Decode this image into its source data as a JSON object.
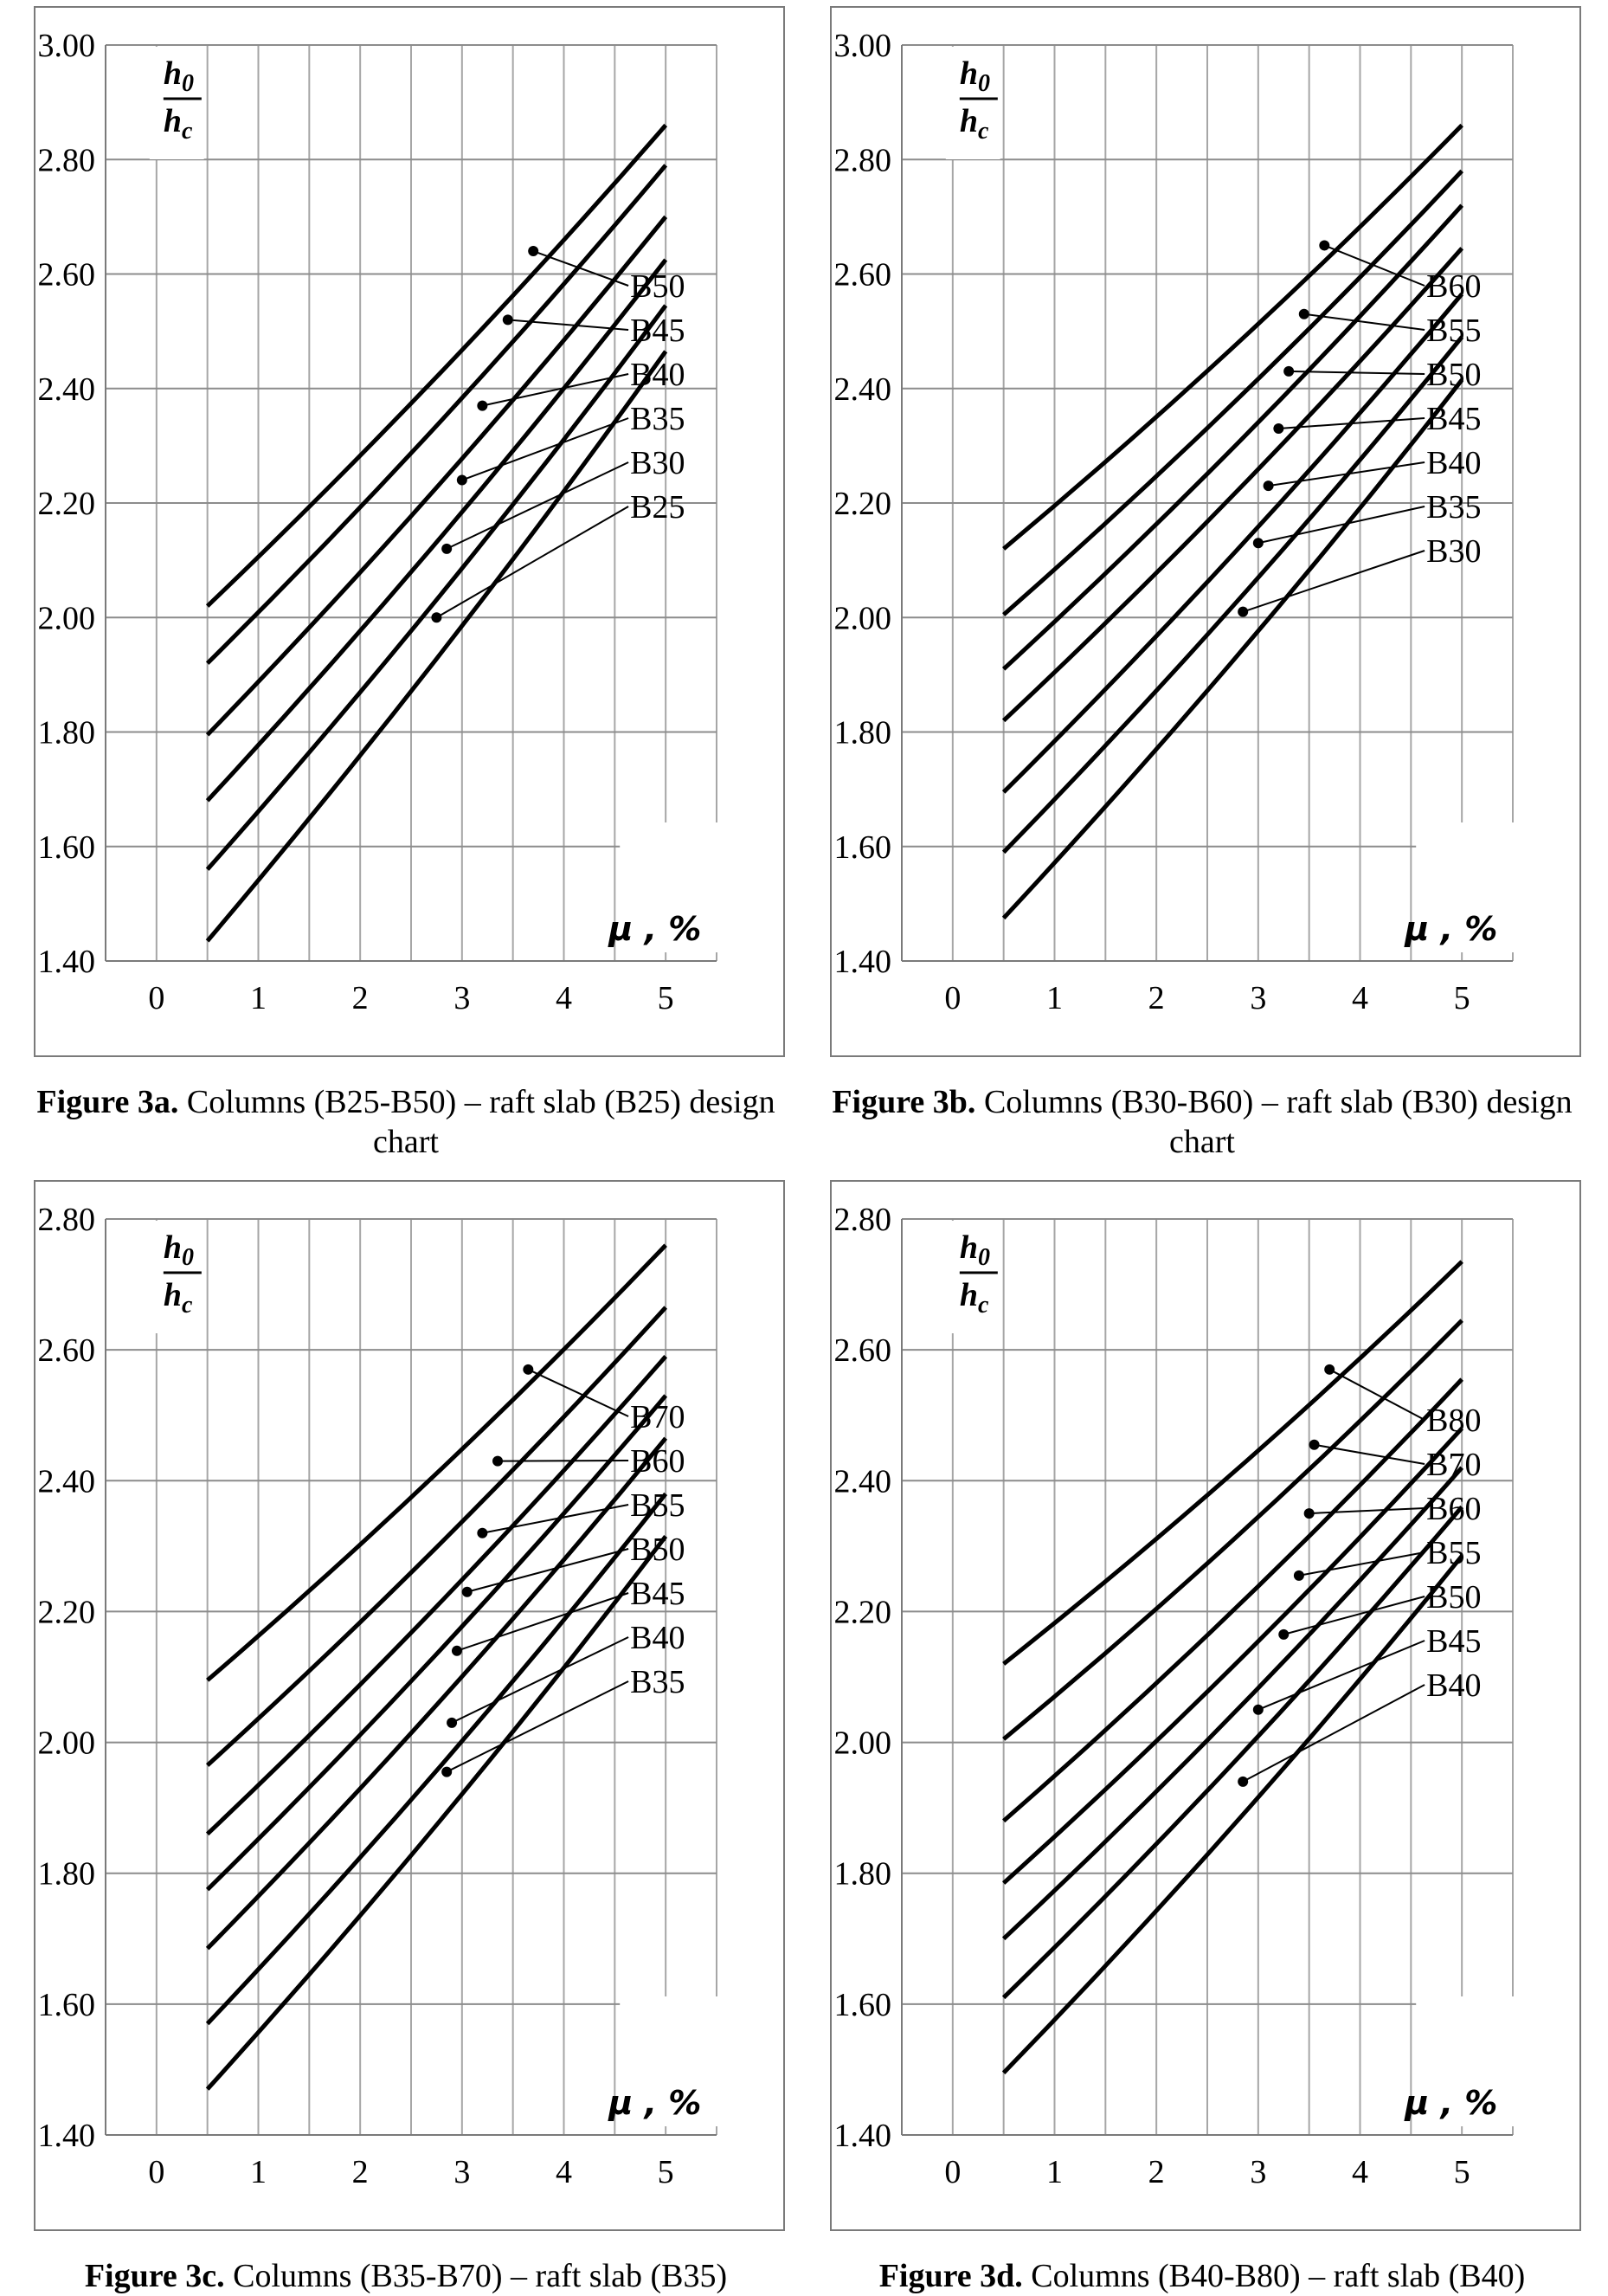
{
  "chart_data": [
    {
      "type": "line",
      "caption": {
        "label": "Figure 3a.",
        "text": " Columns (B25-B50) – raft slab (B25) design chart"
      },
      "ylabel": {
        "num": "h",
        "num_sub": "0",
        "den": "h",
        "den_sub": "c"
      },
      "xlabel": "μ , %",
      "xlim": [
        -0.5,
        5.5
      ],
      "ylim": [
        1.4,
        3.0
      ],
      "xticks": [
        "0",
        "1",
        "2",
        "3",
        "4",
        "5"
      ],
      "yticks": [
        "1.40",
        "1.60",
        "1.80",
        "2.00",
        "2.20",
        "2.40",
        "2.60",
        "2.80",
        "3.00"
      ],
      "grid": true,
      "series": [
        {
          "name": "B50",
          "x": [
            0.5,
            5.0
          ],
          "y": [
            2.02,
            2.86
          ],
          "marker": [
            3.7,
            2.64
          ]
        },
        {
          "name": "B45",
          "x": [
            0.5,
            5.0
          ],
          "y": [
            1.92,
            2.79
          ],
          "marker": [
            3.45,
            2.52
          ]
        },
        {
          "name": "B40",
          "x": [
            0.5,
            5.0
          ],
          "y": [
            1.795,
            2.7
          ],
          "marker": [
            3.2,
            2.37
          ]
        },
        {
          "name": "B35",
          "x": [
            0.5,
            5.0
          ],
          "y": [
            1.68,
            2.625
          ],
          "marker": [
            3.0,
            2.24
          ]
        },
        {
          "name": "B30",
          "x": [
            0.5,
            5.0
          ],
          "y": [
            1.56,
            2.545
          ],
          "marker": [
            2.85,
            2.12
          ]
        },
        {
          "name": "B25",
          "x": [
            0.5,
            5.0
          ],
          "y": [
            1.435,
            2.465
          ],
          "marker": [
            2.75,
            2.0
          ]
        }
      ]
    },
    {
      "type": "line",
      "caption": {
        "label": "Figure 3b.",
        "text": " Columns (B30-B60) – raft slab (B30) design chart"
      },
      "ylabel": {
        "num": "h",
        "num_sub": "0",
        "den": "h",
        "den_sub": "c"
      },
      "xlabel": "μ , %",
      "xlim": [
        -0.5,
        5.5
      ],
      "ylim": [
        1.4,
        3.0
      ],
      "xticks": [
        "0",
        "1",
        "2",
        "3",
        "4",
        "5"
      ],
      "yticks": [
        "1.40",
        "1.60",
        "1.80",
        "2.00",
        "2.20",
        "2.40",
        "2.60",
        "2.80",
        "3.00"
      ],
      "grid": true,
      "series": [
        {
          "name": "B60",
          "x": [
            0.5,
            5.0
          ],
          "y": [
            2.12,
            2.86
          ],
          "marker": [
            3.65,
            2.65
          ]
        },
        {
          "name": "B55",
          "x": [
            0.5,
            5.0
          ],
          "y": [
            2.005,
            2.78
          ],
          "marker": [
            3.45,
            2.53
          ]
        },
        {
          "name": "B50",
          "x": [
            0.5,
            5.0
          ],
          "y": [
            1.91,
            2.72
          ],
          "marker": [
            3.3,
            2.43
          ]
        },
        {
          "name": "B45",
          "x": [
            0.5,
            5.0
          ],
          "y": [
            1.82,
            2.645
          ],
          "marker": [
            3.2,
            2.33
          ]
        },
        {
          "name": "B40",
          "x": [
            0.5,
            5.0
          ],
          "y": [
            1.695,
            2.565
          ],
          "marker": [
            3.1,
            2.23
          ]
        },
        {
          "name": "B35",
          "x": [
            0.5,
            5.0
          ],
          "y": [
            1.59,
            2.49
          ],
          "marker": [
            3.0,
            2.13
          ]
        },
        {
          "name": "B30",
          "x": [
            0.5,
            5.0
          ],
          "y": [
            1.475,
            2.415
          ],
          "marker": [
            2.85,
            2.01
          ]
        }
      ]
    },
    {
      "type": "line",
      "caption": {
        "label": "Figure 3c.",
        "text": " Columns (B35-B70) – raft slab (B35)"
      },
      "ylabel": {
        "num": "h",
        "num_sub": "0",
        "den": "h",
        "den_sub": "c"
      },
      "xlabel": "μ , %",
      "xlim": [
        -0.5,
        5.5
      ],
      "ylim": [
        1.4,
        2.8
      ],
      "xticks": [
        "0",
        "1",
        "2",
        "3",
        "4",
        "5"
      ],
      "yticks": [
        "1.40",
        "1.60",
        "1.80",
        "2.00",
        "2.20",
        "2.40",
        "2.60",
        "2.80"
      ],
      "grid": true,
      "series": [
        {
          "name": "B70",
          "x": [
            0.5,
            5.0
          ],
          "y": [
            2.095,
            2.76
          ],
          "marker": [
            3.65,
            2.57
          ]
        },
        {
          "name": "B60",
          "x": [
            0.5,
            5.0
          ],
          "y": [
            1.965,
            2.665
          ],
          "marker": [
            3.35,
            2.43
          ]
        },
        {
          "name": "B55",
          "x": [
            0.5,
            5.0
          ],
          "y": [
            1.86,
            2.59
          ],
          "marker": [
            3.2,
            2.32
          ]
        },
        {
          "name": "B50",
          "x": [
            0.5,
            5.0
          ],
          "y": [
            1.775,
            2.53
          ],
          "marker": [
            3.05,
            2.23
          ]
        },
        {
          "name": "B45",
          "x": [
            0.5,
            5.0
          ],
          "y": [
            1.685,
            2.465
          ],
          "marker": [
            2.95,
            2.14
          ]
        },
        {
          "name": "B40",
          "x": [
            0.5,
            5.0
          ],
          "y": [
            1.57,
            2.38
          ],
          "marker": [
            2.9,
            2.03
          ]
        },
        {
          "name": "B35",
          "x": [
            0.5,
            5.0
          ],
          "y": [
            1.47,
            2.315
          ],
          "marker": [
            2.85,
            1.955
          ]
        }
      ]
    },
    {
      "type": "line",
      "caption": {
        "label": "Figure 3d.",
        "text": " Columns (B40-B80) – raft slab (B40)"
      },
      "ylabel": {
        "num": "h",
        "num_sub": "0",
        "den": "h",
        "den_sub": "c"
      },
      "xlabel": "μ , %",
      "xlim": [
        -0.5,
        5.5
      ],
      "ylim": [
        1.4,
        2.8
      ],
      "xticks": [
        "0",
        "1",
        "2",
        "3",
        "4",
        "5"
      ],
      "yticks": [
        "1.40",
        "1.60",
        "1.80",
        "2.00",
        "2.20",
        "2.40",
        "2.60",
        "2.80"
      ],
      "grid": true,
      "series": [
        {
          "name": "B80",
          "x": [
            0.5,
            5.0
          ],
          "y": [
            2.12,
            2.735
          ],
          "marker": [
            3.7,
            2.57
          ]
        },
        {
          "name": "B70",
          "x": [
            0.5,
            5.0
          ],
          "y": [
            2.005,
            2.645
          ],
          "marker": [
            3.55,
            2.455
          ]
        },
        {
          "name": "B60",
          "x": [
            0.5,
            5.0
          ],
          "y": [
            1.88,
            2.555
          ],
          "marker": [
            3.5,
            2.35
          ]
        },
        {
          "name": "B55",
          "x": [
            0.5,
            5.0
          ],
          "y": [
            1.785,
            2.48
          ],
          "marker": [
            3.4,
            2.255
          ]
        },
        {
          "name": "B50",
          "x": [
            0.5,
            5.0
          ],
          "y": [
            1.7,
            2.42
          ],
          "marker": [
            3.25,
            2.165
          ]
        },
        {
          "name": "B45",
          "x": [
            0.5,
            5.0
          ],
          "y": [
            1.61,
            2.36
          ],
          "marker": [
            3.0,
            2.05
          ]
        },
        {
          "name": "B40",
          "x": [
            0.5,
            5.0
          ],
          "y": [
            1.495,
            2.285
          ],
          "marker": [
            2.85,
            1.94
          ]
        }
      ]
    }
  ]
}
